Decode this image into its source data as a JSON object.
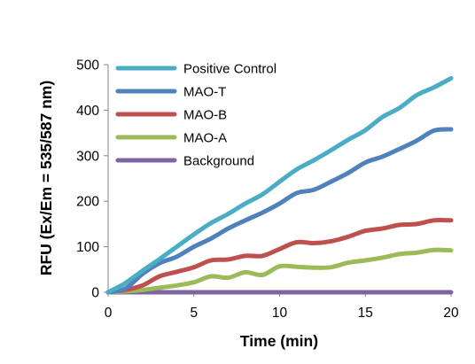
{
  "chart_data": {
    "type": "line",
    "title": "",
    "xlabel": "Time (min)",
    "ylabel": "RFU (Ex/Em = 535/587 nm)",
    "xlim": [
      0,
      20
    ],
    "ylim": [
      0,
      500
    ],
    "xticks": [
      0,
      5,
      10,
      15,
      20
    ],
    "yticks": [
      0,
      100,
      200,
      300,
      400,
      500
    ],
    "grid": false,
    "legend": "top-left",
    "series": [
      {
        "name": "Positive Control",
        "color": "#4bacc6",
        "x": [
          0,
          1,
          2,
          3,
          4,
          5,
          6,
          7,
          8,
          9,
          10,
          11,
          12,
          13,
          14,
          15,
          16,
          17,
          18,
          19,
          20
        ],
        "values": [
          0,
          20,
          47,
          73,
          100,
          127,
          152,
          172,
          195,
          215,
          243,
          270,
          290,
          312,
          335,
          356,
          385,
          405,
          433,
          450,
          470
        ]
      },
      {
        "name": "MAO-T",
        "color": "#4f81bd",
        "x": [
          0,
          1,
          2,
          3,
          4,
          5,
          6,
          7,
          8,
          9,
          10,
          11,
          12,
          13,
          14,
          15,
          16,
          17,
          18,
          19,
          20
        ],
        "values": [
          0,
          8,
          40,
          64,
          78,
          100,
          118,
          140,
          158,
          175,
          195,
          218,
          225,
          243,
          262,
          285,
          298,
          315,
          333,
          355,
          358
        ]
      },
      {
        "name": "MAO-B",
        "color": "#c0504d",
        "x": [
          0,
          1,
          2,
          3,
          4,
          5,
          6,
          7,
          8,
          9,
          10,
          11,
          12,
          13,
          14,
          15,
          16,
          17,
          18,
          19,
          20
        ],
        "values": [
          0,
          5,
          15,
          35,
          45,
          55,
          70,
          72,
          80,
          80,
          95,
          110,
          108,
          112,
          122,
          135,
          140,
          148,
          150,
          158,
          158
        ]
      },
      {
        "name": "MAO-A",
        "color": "#9bbb59",
        "x": [
          0,
          1,
          2,
          3,
          4,
          5,
          6,
          7,
          8,
          9,
          10,
          11,
          12,
          13,
          14,
          15,
          16,
          17,
          18,
          19,
          20
        ],
        "values": [
          0,
          2,
          5,
          10,
          15,
          22,
          35,
          32,
          44,
          38,
          57,
          56,
          54,
          55,
          65,
          70,
          76,
          84,
          87,
          93,
          92
        ]
      },
      {
        "name": "Background",
        "color": "#8064a2",
        "x": [
          0,
          1,
          2,
          3,
          4,
          5,
          6,
          7,
          8,
          9,
          10,
          11,
          12,
          13,
          14,
          15,
          16,
          17,
          18,
          19,
          20
        ],
        "values": [
          0,
          0,
          0,
          0,
          0,
          0,
          0,
          0,
          0,
          0,
          0,
          0,
          0,
          0,
          0,
          0,
          0,
          0,
          0,
          0,
          0
        ]
      }
    ]
  }
}
